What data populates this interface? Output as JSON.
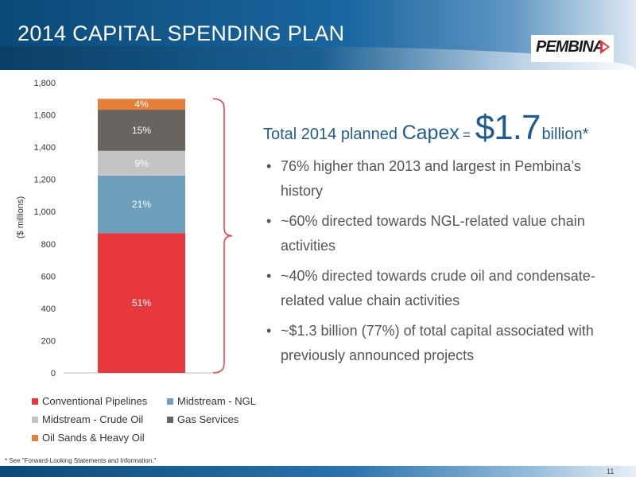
{
  "slide": {
    "title": "2014 CAPITAL SPENDING PLAN",
    "logo_text": "PEMBINA",
    "footnote": "*  See \"Forward-Looking Statements and Information.\"",
    "page_number": "11",
    "headline": {
      "part1": "Total 2014 planned ",
      "part2": "Capex",
      "part3": "=",
      "part4": "$1.7",
      "part5": "billion*"
    },
    "bullets": [
      "76% higher than 2013 and largest in Pembina’s history",
      "~60% directed towards NGL-related value chain activities",
      "~40% directed towards crude oil and condensate-related value chain activities",
      "~$1.3 billion (77%) of total capital associated with previously announced projects"
    ],
    "colors": {
      "header_blue": "#0b4a78",
      "headline_blue": "#1f5d91",
      "bracket_red": "#e53a40"
    }
  },
  "chart_data": {
    "type": "bar",
    "stacked": true,
    "ylabel": "($ millions)",
    "ylim": [
      0,
      1800
    ],
    "yticks": [
      0,
      200,
      400,
      600,
      800,
      1000,
      1200,
      1400,
      1600,
      1800
    ],
    "ytick_labels": [
      "0",
      "200",
      "400",
      "600",
      "800",
      "1,000",
      "1,200",
      "1,400",
      "1,600",
      "1,800"
    ],
    "grid": false,
    "legend_position": "bottom",
    "series": [
      {
        "name": "Conventional Pipelines",
        "value": 867,
        "label": "51%",
        "color": "#e8383f",
        "label_color": "#ffffff"
      },
      {
        "name": "Midstream - NGL",
        "value": 357,
        "label": "21%",
        "color": "#6e9fbd",
        "label_color": "#ffffff"
      },
      {
        "name": "Midstream - Crude Oil",
        "value": 153,
        "label": "9%",
        "color": "#c4c4c4",
        "label_color": "#ffffff"
      },
      {
        "name": "Gas Services",
        "value": 255,
        "label": "15%",
        "color": "#6a6461",
        "label_color": "#ffffff"
      },
      {
        "name": "Oil Sands & Heavy Oil",
        "value": 68,
        "label": "4%",
        "color": "#e57e38",
        "label_color": "#ffffff"
      }
    ]
  }
}
